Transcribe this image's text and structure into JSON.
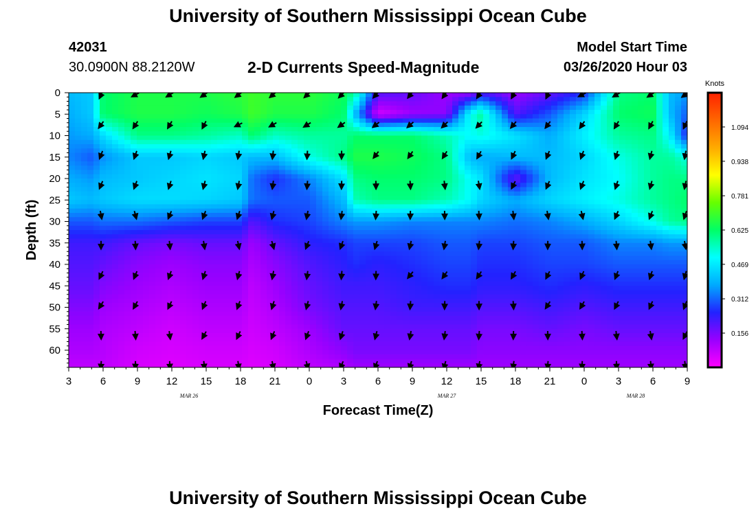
{
  "page": {
    "title_top": "University of Southern Mississippi Ocean Cube",
    "title_bottom": "University of Southern Mississippi Ocean Cube",
    "station_id": "42031",
    "coordinates": "30.0900N 88.2120W",
    "chart_title": "2-D Currents Speed-Magnitude",
    "model_start_label": "Model Start Time",
    "model_start_value": "03/26/2020 Hour 03"
  },
  "chart_data": {
    "type": "heatmap",
    "title": "2-D Currents Speed-Magnitude",
    "xlabel": "Forecast Time(Z)",
    "ylabel": "Depth (ft)",
    "x_tick_labels": [
      "3",
      "6",
      "9",
      "12",
      "15",
      "18",
      "21",
      "0",
      "3",
      "6",
      "9",
      "12",
      "15",
      "18",
      "21",
      "0",
      "3",
      "6",
      "9"
    ],
    "x_ticks_hours": [
      0,
      3,
      6,
      9,
      12,
      15,
      18,
      21,
      24,
      27,
      30,
      33,
      36,
      39,
      42,
      45,
      48,
      51,
      54
    ],
    "date_labels": [
      {
        "label": "MAR 26",
        "hour": 10.5
      },
      {
        "label": "MAR 27",
        "hour": 33
      },
      {
        "label": "MAR 28",
        "hour": 49.5
      }
    ],
    "y_ticks": [
      0,
      5,
      10,
      15,
      20,
      25,
      30,
      35,
      40,
      45,
      50,
      55,
      60
    ],
    "xlim_hours": [
      0,
      54
    ],
    "ylim_ft": [
      0,
      64
    ],
    "colorbar": {
      "label": "Knots",
      "tick_labels": [
        "1.094",
        "0.938",
        "0.781",
        "0.625",
        "0.469",
        "0.312",
        "0.156"
      ],
      "tick_values": [
        1.094,
        0.938,
        0.781,
        0.625,
        0.469,
        0.312,
        0.156
      ],
      "range": [
        0,
        1.25
      ],
      "colors": [
        "#ff00ff",
        "#9900ff",
        "#2222ff",
        "#00aaff",
        "#00ffff",
        "#00ff66",
        "#66ff00",
        "#ffff00",
        "#ffaa00",
        "#ff6600",
        "#ff2200"
      ]
    },
    "depth_profile": {
      "depths_ft": [
        0,
        5,
        10,
        15,
        20,
        25,
        30,
        35,
        40,
        45,
        50,
        55,
        60,
        64
      ],
      "columns": [
        {
          "hour": 0,
          "speeds": [
            0.4,
            0.38,
            0.36,
            0.34,
            0.38,
            0.42,
            0.3,
            0.22,
            0.2,
            0.18,
            0.15,
            0.12,
            0.1,
            0.08
          ]
        },
        {
          "hour": 2,
          "speeds": [
            0.42,
            0.42,
            0.38,
            0.3,
            0.36,
            0.4,
            0.3,
            0.22,
            0.2,
            0.18,
            0.15,
            0.12,
            0.1,
            0.08
          ]
        },
        {
          "hour": 3,
          "speeds": [
            0.62,
            0.62,
            0.45,
            0.35,
            0.4,
            0.42,
            0.32,
            0.22,
            0.18,
            0.15,
            0.12,
            0.1,
            0.09,
            0.08
          ]
        },
        {
          "hour": 6,
          "speeds": [
            0.66,
            0.66,
            0.6,
            0.42,
            0.42,
            0.45,
            0.32,
            0.18,
            0.14,
            0.12,
            0.1,
            0.08,
            0.06,
            0.05
          ]
        },
        {
          "hour": 9,
          "speeds": [
            0.66,
            0.66,
            0.6,
            0.42,
            0.44,
            0.45,
            0.3,
            0.16,
            0.12,
            0.1,
            0.08,
            0.06,
            0.05,
            0.04
          ]
        },
        {
          "hour": 12,
          "speeds": [
            0.66,
            0.64,
            0.58,
            0.44,
            0.46,
            0.44,
            0.28,
            0.18,
            0.14,
            0.12,
            0.1,
            0.08,
            0.06,
            0.05
          ]
        },
        {
          "hour": 15,
          "speeds": [
            0.68,
            0.66,
            0.55,
            0.42,
            0.44,
            0.42,
            0.28,
            0.18,
            0.14,
            0.12,
            0.1,
            0.08,
            0.06,
            0.05
          ]
        },
        {
          "hour": 16,
          "speeds": [
            0.7,
            0.7,
            0.62,
            0.4,
            0.32,
            0.32,
            0.2,
            0.12,
            0.1,
            0.08,
            0.07,
            0.06,
            0.05,
            0.04
          ]
        },
        {
          "hour": 18,
          "speeds": [
            0.68,
            0.66,
            0.55,
            0.4,
            0.26,
            0.3,
            0.26,
            0.18,
            0.14,
            0.12,
            0.1,
            0.08,
            0.06,
            0.05
          ]
        },
        {
          "hour": 21,
          "speeds": [
            0.68,
            0.66,
            0.58,
            0.52,
            0.34,
            0.3,
            0.28,
            0.24,
            0.2,
            0.18,
            0.16,
            0.12,
            0.1,
            0.08
          ]
        },
        {
          "hour": 24,
          "speeds": [
            0.64,
            0.62,
            0.58,
            0.6,
            0.46,
            0.4,
            0.34,
            0.26,
            0.24,
            0.22,
            0.2,
            0.18,
            0.14,
            0.1
          ]
        },
        {
          "hour": 25,
          "speeds": [
            0.58,
            0.4,
            0.62,
            0.66,
            0.6,
            0.56,
            0.36,
            0.28,
            0.26,
            0.22,
            0.2,
            0.18,
            0.16,
            0.12
          ]
        },
        {
          "hour": 27,
          "speeds": [
            0.2,
            0.05,
            0.62,
            0.66,
            0.62,
            0.6,
            0.36,
            0.28,
            0.24,
            0.22,
            0.2,
            0.18,
            0.16,
            0.12
          ]
        },
        {
          "hour": 30,
          "speeds": [
            0.18,
            0.12,
            0.62,
            0.64,
            0.62,
            0.6,
            0.34,
            0.28,
            0.26,
            0.24,
            0.22,
            0.18,
            0.16,
            0.12
          ]
        },
        {
          "hour": 33,
          "speeds": [
            0.12,
            0.14,
            0.56,
            0.6,
            0.6,
            0.56,
            0.34,
            0.3,
            0.28,
            0.26,
            0.22,
            0.18,
            0.16,
            0.12
          ]
        },
        {
          "hour": 35,
          "speeds": [
            0.12,
            0.5,
            0.5,
            0.4,
            0.5,
            0.5,
            0.34,
            0.3,
            0.28,
            0.26,
            0.22,
            0.18,
            0.16,
            0.12
          ]
        },
        {
          "hour": 36,
          "speeds": [
            0.2,
            0.58,
            0.52,
            0.38,
            0.46,
            0.44,
            0.34,
            0.28,
            0.26,
            0.24,
            0.2,
            0.16,
            0.14,
            0.12
          ]
        },
        {
          "hour": 39,
          "speeds": [
            0.12,
            0.2,
            0.46,
            0.4,
            0.18,
            0.38,
            0.32,
            0.28,
            0.26,
            0.24,
            0.2,
            0.16,
            0.14,
            0.12
          ]
        },
        {
          "hour": 42,
          "speeds": [
            0.18,
            0.3,
            0.38,
            0.4,
            0.4,
            0.44,
            0.34,
            0.3,
            0.28,
            0.26,
            0.22,
            0.18,
            0.14,
            0.12
          ]
        },
        {
          "hour": 45,
          "speeds": [
            0.26,
            0.44,
            0.48,
            0.44,
            0.46,
            0.48,
            0.38,
            0.3,
            0.28,
            0.24,
            0.2,
            0.16,
            0.14,
            0.12
          ]
        },
        {
          "hour": 48,
          "speeds": [
            0.6,
            0.62,
            0.58,
            0.52,
            0.5,
            0.52,
            0.44,
            0.34,
            0.3,
            0.26,
            0.22,
            0.18,
            0.14,
            0.12
          ]
        },
        {
          "hour": 51,
          "speeds": [
            0.62,
            0.64,
            0.6,
            0.58,
            0.58,
            0.58,
            0.52,
            0.34,
            0.3,
            0.26,
            0.22,
            0.18,
            0.14,
            0.12
          ]
        },
        {
          "hour": 52.5,
          "speeds": [
            0.4,
            0.4,
            0.48,
            0.58,
            0.6,
            0.6,
            0.58,
            0.36,
            0.3,
            0.26,
            0.22,
            0.18,
            0.14,
            0.12
          ]
        },
        {
          "hour": 54,
          "speeds": [
            0.36,
            0.3,
            0.24,
            0.52,
            0.6,
            0.62,
            0.6,
            0.36,
            0.3,
            0.26,
            0.22,
            0.18,
            0.14,
            0.12
          ]
        }
      ]
    },
    "current_vectors": {
      "arrow_hours": [
        3,
        6,
        9,
        12,
        15,
        18,
        21,
        24,
        27,
        30,
        33,
        36,
        39,
        42,
        45,
        48,
        51,
        54
      ],
      "arrow_depths_ft": [
        0,
        7,
        14,
        21,
        28,
        35,
        42,
        49,
        56,
        63
      ],
      "direction_deg_by_depth": [
        225,
        225,
        200,
        190,
        185,
        185,
        200,
        195,
        190,
        185
      ],
      "note": "arrows point toward the west / southwest (compass degrees)"
    }
  }
}
